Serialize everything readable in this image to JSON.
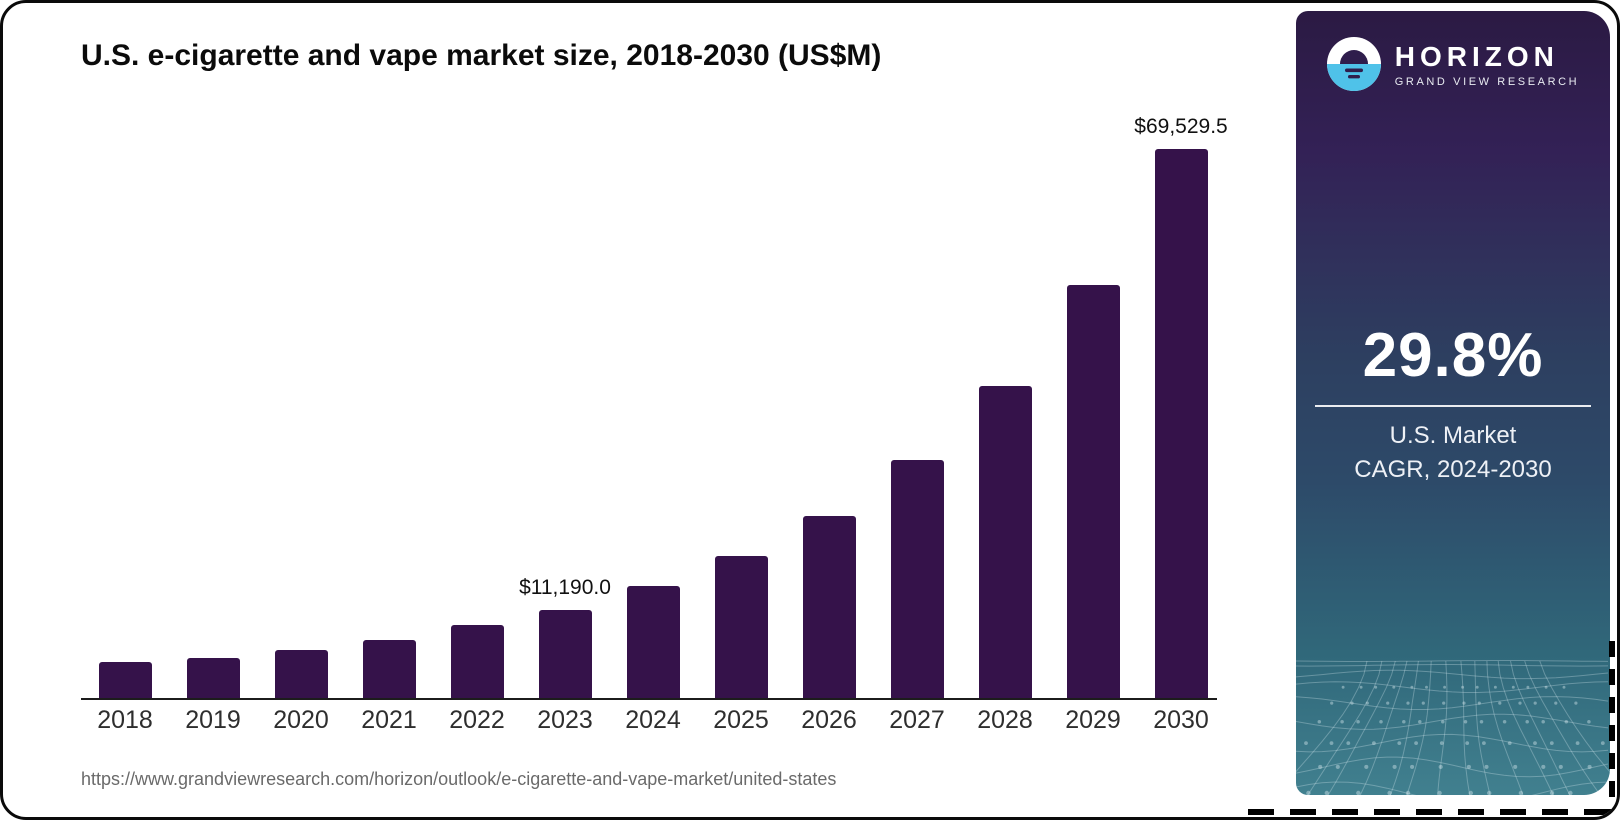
{
  "chart": {
    "title": "U.S. e-cigarette and vape market size, 2018-2030 (US$M)",
    "source_url": "https://www.grandviewresearch.com/horizon/outlook/e-cigarette-and-vape-market/united-states"
  },
  "chart_data": {
    "type": "bar",
    "title": "U.S. e-cigarette and vape market size, 2018-2030 (US$M)",
    "unit": "US$M",
    "categories": [
      "2018",
      "2019",
      "2020",
      "2021",
      "2022",
      "2023",
      "2024",
      "2025",
      "2026",
      "2027",
      "2028",
      "2029",
      "2030"
    ],
    "values": [
      4600,
      5100,
      6100,
      7300,
      9200,
      11190.0,
      14200,
      18000,
      23100,
      30200,
      39500,
      52300,
      69529.5
    ],
    "data_labels": {
      "2023": "$11,190.0",
      "2030": "$69,529.5"
    },
    "ylim": [
      0,
      69529.5
    ],
    "grid": false,
    "legend": "none",
    "bar_color": "#35124a",
    "axis_color": "#1c1c1c"
  },
  "sidebar": {
    "logo_title": "HORIZON",
    "logo_subtitle": "GRAND VIEW RESEARCH",
    "cagr_value": "29.8%",
    "caption_line1": "U.S. Market",
    "caption_line2": "CAGR, 2024-2030",
    "colors": {
      "gradient_top": "#2b1a43",
      "gradient_mid": "#2d4a69",
      "gradient_bottom": "#41808f",
      "logo_blue": "#4fc2e9",
      "text": "#ffffff"
    }
  }
}
